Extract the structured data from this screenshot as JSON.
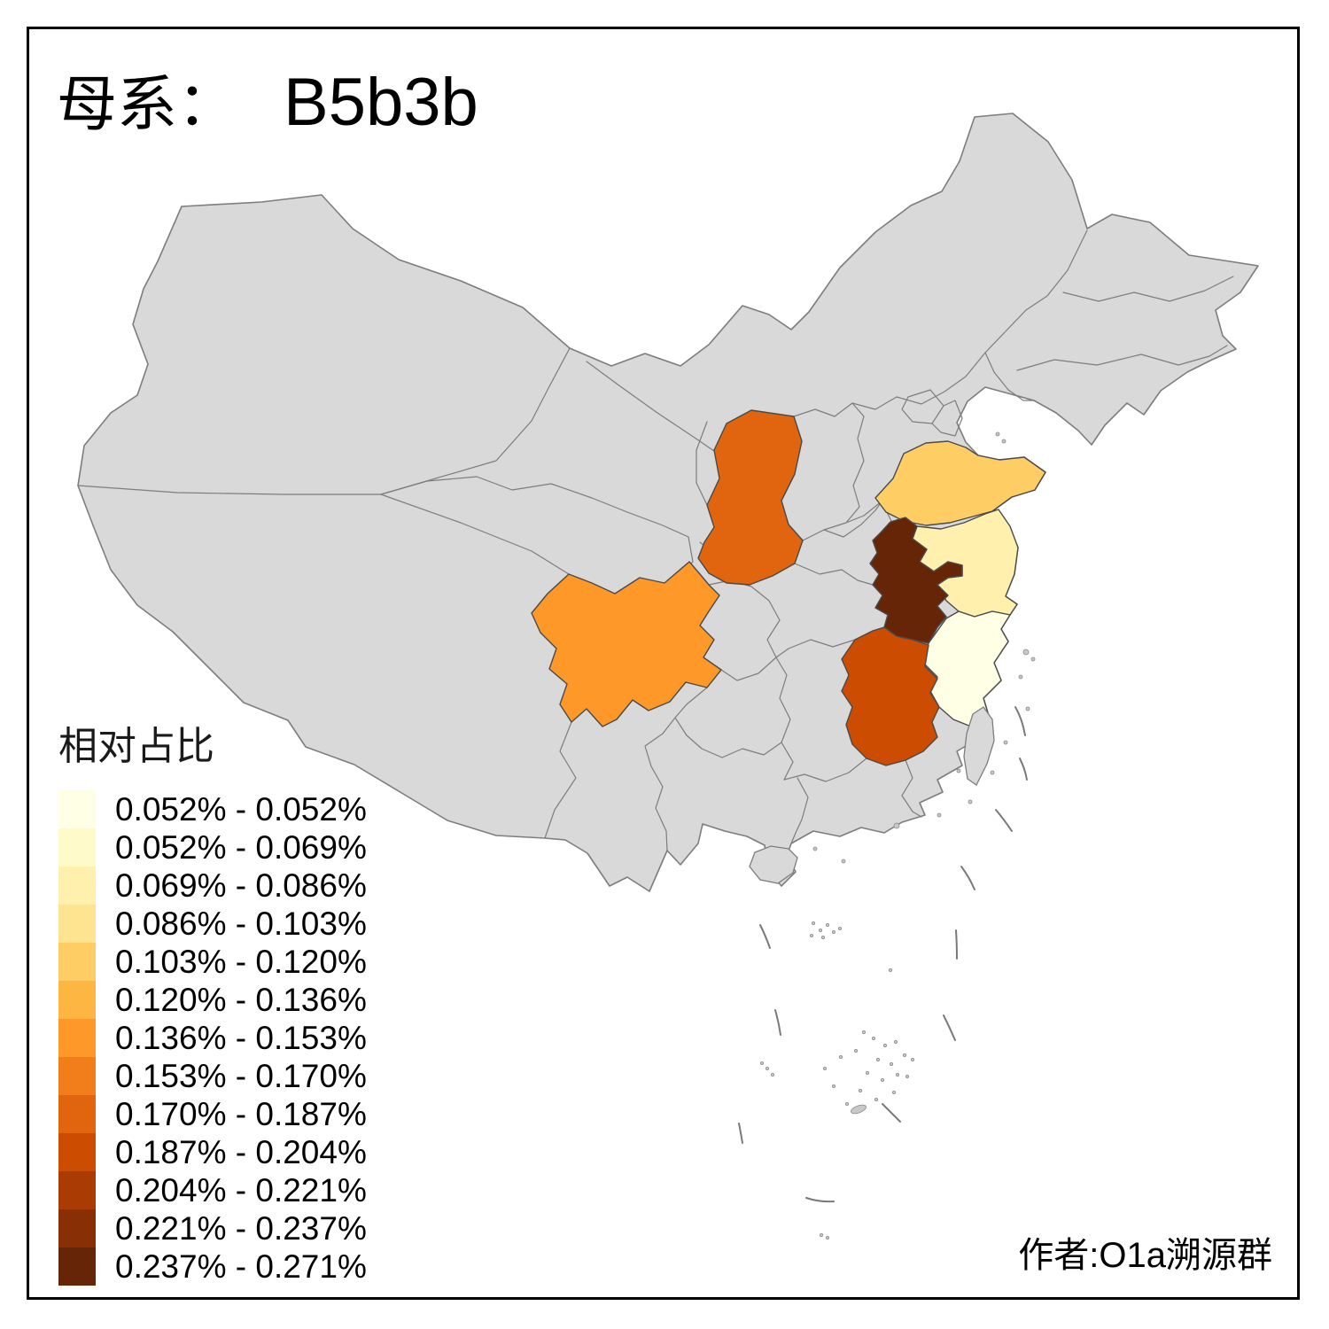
{
  "title": {
    "prefix": "母系：",
    "value": "B5b3b"
  },
  "legend": {
    "title": "相对占比",
    "items": [
      {
        "label": "0.052% - 0.052%",
        "color": "#FFFFE5"
      },
      {
        "label": "0.052% - 0.069%",
        "color": "#FFFACA"
      },
      {
        "label": "0.069% - 0.086%",
        "color": "#FFF0AE"
      },
      {
        "label": "0.086% - 0.103%",
        "color": "#FEE391"
      },
      {
        "label": "0.103% - 0.120%",
        "color": "#FECE65"
      },
      {
        "label": "0.120% - 0.136%",
        "color": "#FEB642"
      },
      {
        "label": "0.136% - 0.153%",
        "color": "#FE9929"
      },
      {
        "label": "0.153% - 0.170%",
        "color": "#F27E1B"
      },
      {
        "label": "0.170% - 0.187%",
        "color": "#E1640E"
      },
      {
        "label": "0.187% - 0.204%",
        "color": "#CC4C02"
      },
      {
        "label": "0.204% - 0.221%",
        "color": "#AA3C03"
      },
      {
        "label": "0.221% - 0.237%",
        "color": "#882F05"
      },
      {
        "label": "0.237% - 0.271%",
        "color": "#662506"
      }
    ]
  },
  "credit": "作者:O1a溯源群",
  "map": {
    "no_data_fill": "#D9D9D9",
    "border_color": "#7D7D7D",
    "regions": [
      {
        "id": "zhejiang",
        "bin": "0.052% - 0.052%",
        "color": "#FFFFE5"
      },
      {
        "id": "jiangsu",
        "bin": "0.069% - 0.086%",
        "color": "#FFF0AE"
      },
      {
        "id": "shandong",
        "bin": "0.103% - 0.120%",
        "color": "#FECE65"
      },
      {
        "id": "sichuan",
        "bin": "0.136% - 0.153%",
        "color": "#FE9929"
      },
      {
        "id": "shaanxi",
        "bin": "0.170% - 0.187%",
        "color": "#E1640E"
      },
      {
        "id": "jiangxi",
        "bin": "0.187% - 0.204%",
        "color": "#CC4C02"
      },
      {
        "id": "anhui",
        "bin": "0.237% - 0.271%",
        "color": "#662506"
      }
    ]
  },
  "chart_data": {
    "type": "choropleth_map",
    "title": "母系： B5b3b",
    "legend_title": "相对占比",
    "legend_bins": [
      "0.052% - 0.052%",
      "0.052% - 0.069%",
      "0.069% - 0.086%",
      "0.086% - 0.103%",
      "0.103% - 0.120%",
      "0.120% - 0.136%",
      "0.136% - 0.153%",
      "0.153% - 0.170%",
      "0.170% - 0.187%",
      "0.187% - 0.204%",
      "0.204% - 0.221%",
      "0.221% - 0.237%",
      "0.237% - 0.271%"
    ],
    "colored_regions": [
      {
        "region": "zhejiang",
        "value_bin": "0.052% - 0.052%"
      },
      {
        "region": "jiangsu",
        "value_bin": "0.069% - 0.086%"
      },
      {
        "region": "shandong",
        "value_bin": "0.103% - 0.120%"
      },
      {
        "region": "sichuan",
        "value_bin": "0.136% - 0.153%"
      },
      {
        "region": "shaanxi",
        "value_bin": "0.170% - 0.187%"
      },
      {
        "region": "jiangxi",
        "value_bin": "0.187% - 0.204%"
      },
      {
        "region": "anhui",
        "value_bin": "0.237% - 0.271%"
      }
    ],
    "annotations": [
      "作者:O1a溯源群"
    ]
  }
}
